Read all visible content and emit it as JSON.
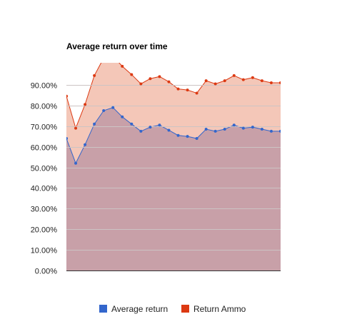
{
  "chart_data": {
    "type": "area",
    "title": "Average return over time",
    "xlabel": "",
    "ylabel": "",
    "ylim": [
      0,
      100
    ],
    "y_ticks": [
      "0.00%",
      "10.00%",
      "20.00%",
      "30.00%",
      "40.00%",
      "50.00%",
      "60.00%",
      "70.00%",
      "80.00%",
      "90.00%"
    ],
    "y_tick_values": [
      0,
      10,
      20,
      30,
      40,
      50,
      60,
      70,
      80,
      90
    ],
    "grid": true,
    "legend_position": "bottom",
    "x": [
      1,
      2,
      3,
      4,
      5,
      6,
      7,
      8,
      9,
      10,
      11,
      12,
      13,
      14,
      15,
      16,
      17,
      18,
      19,
      20,
      21,
      22,
      23,
      24,
      25,
      26,
      27,
      28,
      29,
      30,
      31,
      32,
      33,
      34
    ],
    "series": [
      {
        "name": "Average return",
        "color": "#3366cc",
        "values": [
          64,
          52,
          61,
          71,
          77.5,
          79,
          74.5,
          71,
          67.5,
          69.5,
          70.5,
          68,
          65.5,
          65,
          64,
          68.5,
          67.5,
          68.5,
          70.5,
          69,
          69.5,
          68.5,
          67.5,
          67.5,
          67.5,
          67.5,
          67.5,
          67.5,
          67.5,
          67.5,
          67.5,
          67.5,
          67.5,
          67.5
        ]
      },
      {
        "name": "Return Ammo",
        "color": "#dc3912",
        "values": [
          84.5,
          69,
          80.5,
          94.5,
          103,
          104,
          99,
          95,
          90.5,
          93,
          94,
          91.5,
          88,
          87.5,
          86,
          92,
          90.5,
          92,
          94.5,
          92.5,
          93.5,
          92,
          91,
          91,
          91,
          91,
          91,
          91,
          91,
          91,
          91,
          91,
          91,
          91
        ]
      }
    ],
    "area_colors": {
      "upper": "#f4c7b8",
      "lower": "#c8a0a8"
    },
    "gridline_color": "#ccc4c4",
    "baseline_color": "#333333"
  }
}
